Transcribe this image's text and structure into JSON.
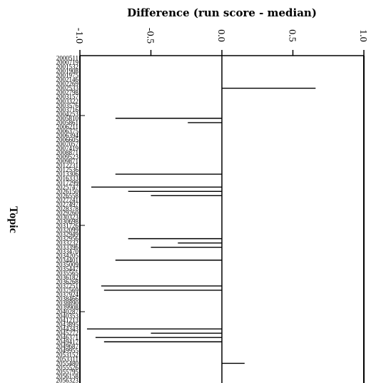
{
  "chart_data": {
    "type": "bar",
    "orientation": "horizontal",
    "title": "Difference (run score - median)",
    "ylabel": "Topic",
    "xlim": [
      -1.0,
      1.0
    ],
    "xticks": [
      -1.0,
      -0.5,
      0.0,
      0.5,
      1.0
    ],
    "xtick_labels": [
      "-1.0",
      "-0.5",
      "0.0",
      "0.5",
      "1.0"
    ],
    "grid": false,
    "categories": [
      "2000511",
      "2000719",
      "2001532",
      "2001908",
      "2001975",
      "2002146",
      "2002269",
      "2002533",
      "2002798",
      "2003157",
      "2003322",
      "2003576",
      "2003716",
      "2004253",
      "2005810",
      "2005861",
      "2006211",
      "2006375",
      "2006394",
      "2006605",
      "2007057",
      "2007419",
      "2008871",
      "2009523",
      "2009871",
      "2012231",
      "2012536",
      "2013306",
      "2016333",
      "2017299",
      "2025747",
      "2026150",
      "2026558",
      "2027241",
      "2027497",
      "2028378",
      "2029260",
      "2030323",
      "2030698",
      "2031726",
      "2032099",
      "2032949",
      "2032956",
      "2033232",
      "2033396",
      "2033470",
      "2034205",
      "2034401",
      "2035009",
      "2035447",
      "2035565",
      "2036182",
      "2036268",
      "2037251",
      "2037569",
      "2037924",
      "2038466",
      "2038890",
      "2039908",
      "2040287",
      "2040353",
      "2041213",
      "2043895",
      "2044343",
      "2045272",
      "2046371",
      "2049417",
      "2049687",
      "2049955",
      "2053152",
      "2053311",
      "2055480",
      "2055526",
      "2055795",
      "2056158",
      "2056323"
    ],
    "values": [
      0,
      0,
      0,
      0,
      0,
      0,
      0,
      0.66,
      0,
      0,
      0,
      0,
      0,
      0,
      -0.75,
      -0.24,
      0,
      0,
      0,
      0,
      0,
      0,
      0,
      0,
      0,
      0,
      0,
      -0.75,
      0,
      0,
      -0.92,
      -0.66,
      -0.5,
      0,
      0,
      0,
      0,
      0,
      0,
      0,
      0,
      0,
      -0.66,
      -0.31,
      -0.5,
      0,
      0,
      -0.75,
      0,
      0,
      0,
      0,
      0,
      -0.85,
      -0.83,
      0,
      0,
      0,
      0,
      0,
      0,
      0,
      0,
      -0.95,
      -0.5,
      -0.89,
      -0.83,
      0,
      0,
      0,
      0,
      0.16,
      0,
      0,
      0,
      0
    ]
  }
}
